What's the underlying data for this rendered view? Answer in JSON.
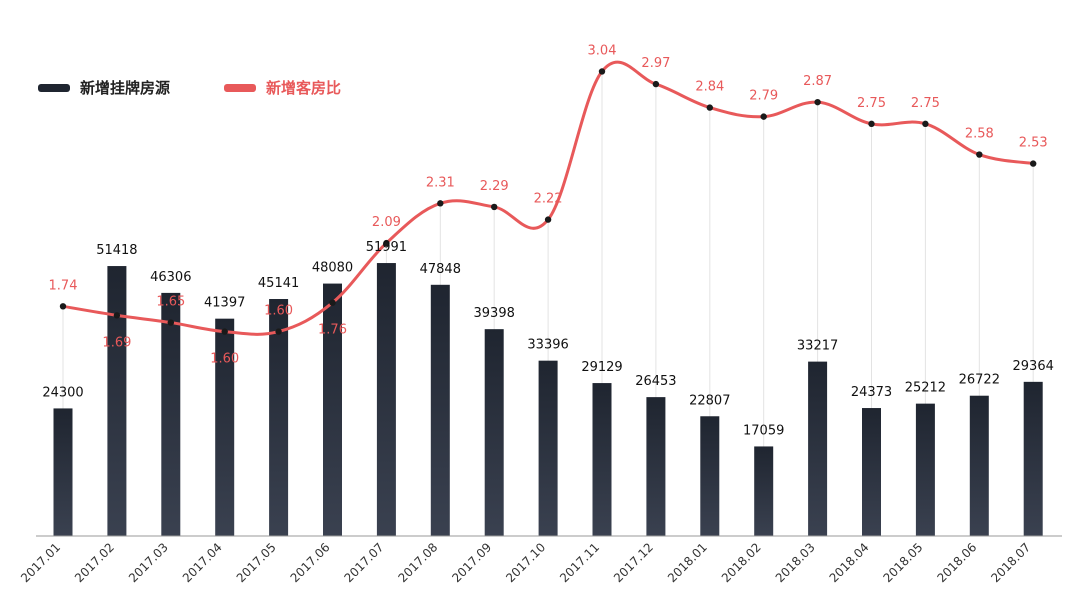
{
  "legend": {
    "listings_label": "新增挂牌房源",
    "ratio_label": "新增客房比"
  },
  "colors": {
    "bar_top": "#1f2530",
    "bar_bottom": "#3a4150",
    "line": "#e8595a",
    "grid": "#e3e3e3",
    "axis": "#9a9a9a"
  },
  "chart_data": {
    "type": "bar",
    "categories": [
      "2017.01",
      "2017.02",
      "2017.03",
      "2017.04",
      "2017.05",
      "2017.06",
      "2017.07",
      "2017.08",
      "2017.09",
      "2017.10",
      "2017.11",
      "2017.12",
      "2018.01",
      "2018.02",
      "2018.03",
      "2018.04",
      "2018.05",
      "2018.06",
      "2018.07"
    ],
    "series": [
      {
        "name": "新增挂牌房源",
        "type": "bar",
        "values": [
          24300,
          51418,
          46306,
          41397,
          45141,
          48080,
          51991,
          47848,
          39398,
          33396,
          29129,
          26453,
          22807,
          17059,
          33217,
          24373,
          25212,
          26722,
          29364
        ]
      },
      {
        "name": "新增客房比",
        "type": "line",
        "values": [
          1.74,
          1.69,
          1.65,
          1.6,
          1.6,
          1.76,
          2.09,
          2.31,
          2.29,
          2.22,
          3.04,
          2.97,
          2.84,
          2.79,
          2.87,
          2.75,
          2.75,
          2.58,
          2.53
        ]
      }
    ],
    "bar_axis_range": [
      0,
      55000
    ],
    "line_axis_range": [
      1.0,
      3.12
    ],
    "grid": "vertical",
    "legend_position": "top-left"
  }
}
